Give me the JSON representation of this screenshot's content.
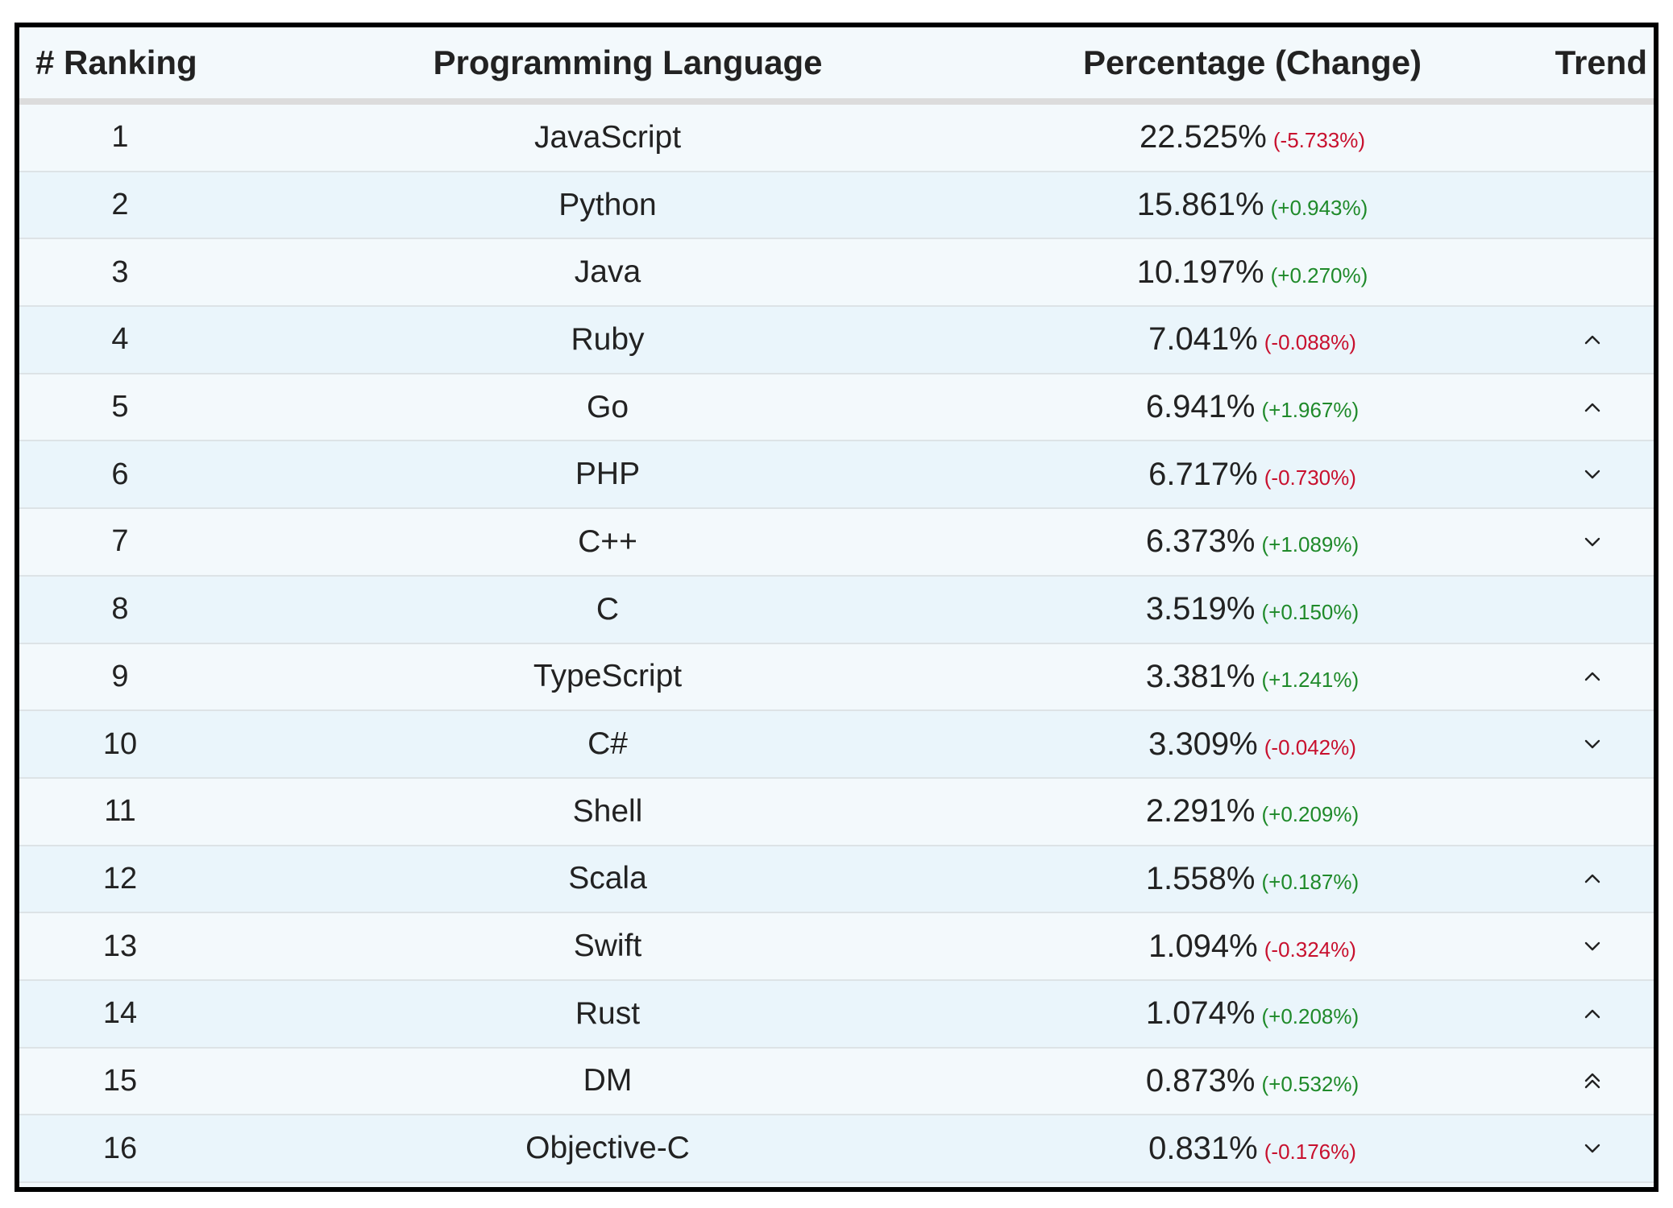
{
  "table": {
    "headers": {
      "ranking": "# Ranking",
      "language": "Programming Language",
      "percentage": "Percentage (Change)",
      "trend": "Trend"
    },
    "rows": [
      {
        "rank": "1",
        "language": "JavaScript",
        "percentage": "22.525%",
        "change": "(-5.733%)",
        "direction": "neg",
        "trend": "none"
      },
      {
        "rank": "2",
        "language": "Python",
        "percentage": "15.861%",
        "change": "(+0.943%)",
        "direction": "pos",
        "trend": "none"
      },
      {
        "rank": "3",
        "language": "Java",
        "percentage": "10.197%",
        "change": "(+0.270%)",
        "direction": "pos",
        "trend": "none"
      },
      {
        "rank": "4",
        "language": "Ruby",
        "percentage": "7.041%",
        "change": "(-0.088%)",
        "direction": "neg",
        "trend": "up"
      },
      {
        "rank": "5",
        "language": "Go",
        "percentage": "6.941%",
        "change": "(+1.967%)",
        "direction": "pos",
        "trend": "up"
      },
      {
        "rank": "6",
        "language": "PHP",
        "percentage": "6.717%",
        "change": "(-0.730%)",
        "direction": "neg",
        "trend": "down"
      },
      {
        "rank": "7",
        "language": "C++",
        "percentage": "6.373%",
        "change": "(+1.089%)",
        "direction": "pos",
        "trend": "down"
      },
      {
        "rank": "8",
        "language": "C",
        "percentage": "3.519%",
        "change": "(+0.150%)",
        "direction": "pos",
        "trend": "none"
      },
      {
        "rank": "9",
        "language": "TypeScript",
        "percentage": "3.381%",
        "change": "(+1.241%)",
        "direction": "pos",
        "trend": "up"
      },
      {
        "rank": "10",
        "language": "C#",
        "percentage": "3.309%",
        "change": "(-0.042%)",
        "direction": "neg",
        "trend": "down"
      },
      {
        "rank": "11",
        "language": "Shell",
        "percentage": "2.291%",
        "change": "(+0.209%)",
        "direction": "pos",
        "trend": "none"
      },
      {
        "rank": "12",
        "language": "Scala",
        "percentage": "1.558%",
        "change": "(+0.187%)",
        "direction": "pos",
        "trend": "up"
      },
      {
        "rank": "13",
        "language": "Swift",
        "percentage": "1.094%",
        "change": "(-0.324%)",
        "direction": "neg",
        "trend": "down"
      },
      {
        "rank": "14",
        "language": "Rust",
        "percentage": "1.074%",
        "change": "(+0.208%)",
        "direction": "pos",
        "trend": "up"
      },
      {
        "rank": "15",
        "language": "DM",
        "percentage": "0.873%",
        "change": "(+0.532%)",
        "direction": "pos",
        "trend": "double-up"
      },
      {
        "rank": "16",
        "language": "Objective-C",
        "percentage": "0.831%",
        "change": "(-0.176%)",
        "direction": "neg",
        "trend": "down"
      }
    ]
  },
  "colors": {
    "negative": "#c8102e",
    "positive": "#1f8a2a",
    "row_light": "#f3f9fc",
    "row_tint": "#eaf5fb"
  },
  "icons": {
    "up": "chevron-up-icon",
    "down": "chevron-down-icon",
    "double-up": "double-chevron-up-icon"
  }
}
